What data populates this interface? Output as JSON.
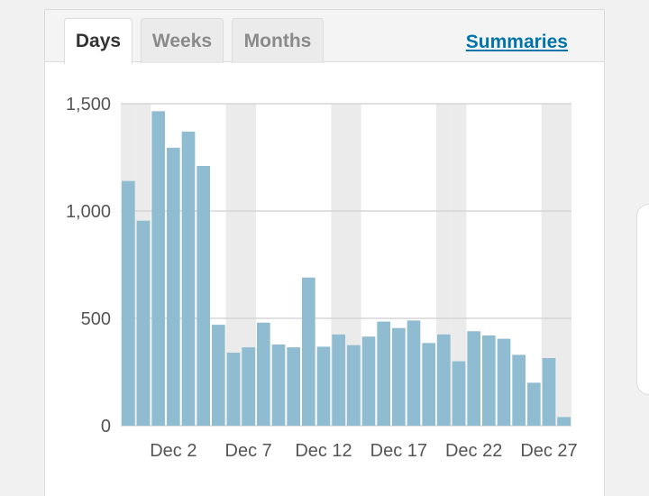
{
  "tabs": [
    {
      "label": "Days",
      "active": true
    },
    {
      "label": "Weeks",
      "active": false
    },
    {
      "label": "Months",
      "active": false
    }
  ],
  "summaries_link": "Summaries",
  "colors": {
    "bar": "#8fbcd0",
    "weekend_band": "#ebebeb",
    "gridline": "#d6d6d6",
    "link": "#0073aa"
  },
  "chart_data": {
    "type": "bar",
    "title": "",
    "xlabel": "",
    "ylabel": "",
    "ylim": [
      0,
      1500
    ],
    "y_ticks": [
      0,
      500,
      1000,
      1500
    ],
    "y_tick_labels": [
      "0",
      "500",
      "1,000",
      "1,500"
    ],
    "x_tick_labels": [
      {
        "day": 2,
        "label": "Dec 2"
      },
      {
        "day": 7,
        "label": "Dec 7"
      },
      {
        "day": 12,
        "label": "Dec 12"
      },
      {
        "day": 17,
        "label": "Dec 17"
      },
      {
        "day": 22,
        "label": "Dec 22"
      },
      {
        "day": 27,
        "label": "Dec 27"
      }
    ],
    "categories": [
      "Nov 29",
      "Nov 30",
      "Dec 1",
      "Dec 2",
      "Dec 3",
      "Dec 4",
      "Dec 5",
      "Dec 6",
      "Dec 7",
      "Dec 8",
      "Dec 9",
      "Dec 10",
      "Dec 11",
      "Dec 12",
      "Dec 13",
      "Dec 14",
      "Dec 15",
      "Dec 16",
      "Dec 17",
      "Dec 18",
      "Dec 19",
      "Dec 20",
      "Dec 21",
      "Dec 22",
      "Dec 23",
      "Dec 24",
      "Dec 25",
      "Dec 26",
      "Dec 27",
      "Dec 28"
    ],
    "values": [
      1140,
      955,
      1465,
      1295,
      1370,
      1210,
      470,
      340,
      365,
      480,
      378,
      365,
      690,
      368,
      425,
      375,
      415,
      485,
      455,
      490,
      385,
      425,
      300,
      440,
      420,
      405,
      330,
      200,
      315,
      40
    ],
    "weekend_days": [
      "Nov 29",
      "Nov 30",
      "Dec 6",
      "Dec 7",
      "Dec 13",
      "Dec 14",
      "Dec 20",
      "Dec 21",
      "Dec 27",
      "Dec 28"
    ],
    "grid": true,
    "legend": "none"
  }
}
